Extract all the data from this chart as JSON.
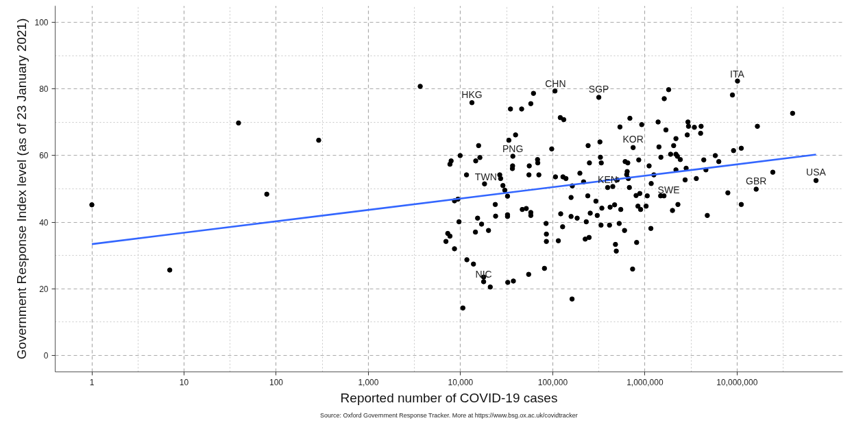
{
  "chart_data": {
    "type": "scatter",
    "xlabel": "Reported number of COVID-19 cases",
    "ylabel": "Government Response Index level (as of 23 January 2021)",
    "log": "x",
    "xlim": [
      0.4,
      140000000
    ],
    "ylim": [
      -5,
      105
    ],
    "xticks": [
      1,
      10,
      100,
      {
        "value": 1000,
        "label": "1,000"
      },
      {
        "value": 10000,
        "label": "10,000"
      },
      {
        "value": 100000,
        "label": "100,000"
      },
      {
        "value": 1000000,
        "label": "1,000,000"
      },
      {
        "value": 10000000,
        "label": "10,000,000"
      }
    ],
    "yticks": [
      0,
      20,
      40,
      60,
      80,
      100
    ],
    "grid": true,
    "series": [
      {
        "color": "#000000",
        "marker": "circle",
        "x": [
          71800000,
          3650,
          39,
          289,
          79,
          1,
          7,
          13280,
          61800,
          105700,
          316000,
          34800,
          46000,
          57800,
          120800,
          131600,
          1810000,
          1620000,
          10100000,
          8900000,
          40000000,
          16600000,
          687000,
          536000,
          923000,
          1390000,
          1690000,
          2930000,
          2970000,
          3440000,
          4070000,
          4020000,
          2880000,
          2170000,
          2050000,
          1420000,
          745000,
          325000,
          242000,
          97500,
          15700,
          33400,
          39500,
          9900,
          7900,
          7670,
          14600,
          16200,
          36900,
          36700,
          36500,
          68400,
          68800,
          55600,
          250000,
          329000,
          336000,
          610000,
          652000,
          857000,
          1490000,
          1900000,
          2170000,
          2250000,
          2420000,
          4350000,
          5800000,
          6330000,
          9150000,
          11100000,
          1110000,
          4590000,
          2800000,
          2170000,
          24400000,
          11600,
          26600,
          27200,
          28800,
          55200,
          70700,
          107000,
          129000,
          139000,
          197000,
          216000,
          163000,
          501000,
          642000,
          634000,
          661000,
          1250000,
          1170000,
          2730000,
          3610000,
          678000,
          394000,
          448000,
          18200,
          30200,
          16100000,
          8590,
          9370,
          32300,
          23800,
          158000,
          240000,
          294000,
          802000,
          880000,
          1060000,
          1480000,
          1610000,
          2280000,
          1990000,
          7940000,
          11100000,
          4750000,
          15300,
          16900,
          20100,
          14500,
          9620,
          7260,
          7670,
          6940,
          8590,
          11700,
          13800,
          17800,
          17800,
          21000,
          10600,
          32500,
          37400,
          54800,
          81300,
          162000,
          735000,
          24000,
          32300,
          32300,
          46700,
          51600,
          57800,
          57800,
          84700,
          85300,
          85300,
          115000,
          122000,
          128000,
          158000,
          184000,
          231000,
          225000,
          248000,
          255000,
          304000,
          341000,
          334000,
          413000,
          419000,
          469000,
          547000,
          526000,
          601000,
          479000,
          489000,
          813000,
          840000,
          898000,
          1030000,
          1160000
        ],
        "values": [
          52.5,
          80.8,
          69.8,
          64.6,
          48.4,
          45.2,
          25.6,
          75.9,
          78.7,
          79.4,
          77.5,
          74.0,
          74.0,
          75.6,
          71.4,
          70.8,
          79.8,
          77.1,
          82.4,
          78.2,
          72.7,
          68.8,
          71.2,
          68.6,
          69.3,
          70.1,
          67.7,
          70.1,
          68.8,
          68.5,
          68.8,
          66.7,
          66.2,
          65.1,
          63.0,
          62.6,
          62.4,
          64.1,
          63.0,
          62.0,
          63.0,
          64.6,
          66.2,
          60.0,
          58.4,
          57.4,
          58.4,
          59.4,
          59.8,
          56.9,
          56.1,
          58.8,
          57.8,
          56.9,
          57.8,
          59.5,
          57.8,
          58.2,
          57.8,
          58.7,
          59.5,
          60.4,
          60.4,
          59.8,
          58.8,
          58.7,
          60.0,
          58.2,
          61.5,
          62.2,
          56.9,
          55.7,
          56.2,
          55.7,
          55.0,
          54.2,
          54.2,
          53.1,
          51.0,
          54.2,
          54.2,
          53.6,
          53.6,
          53.1,
          54.7,
          52.1,
          50.9,
          52.7,
          55.2,
          54.3,
          53.1,
          54.2,
          51.6,
          52.7,
          53.1,
          50.4,
          50.4,
          50.7,
          51.5,
          49.6,
          49.9,
          46.4,
          46.9,
          47.8,
          45.3,
          47.4,
          47.9,
          46.3,
          48.0,
          48.6,
          47.9,
          47.9,
          47.9,
          45.3,
          43.5,
          48.8,
          45.3,
          42.0,
          41.2,
          39.4,
          37.5,
          37.0,
          40.1,
          36.6,
          35.8,
          34.2,
          32.0,
          28.7,
          27.4,
          23.5,
          22.1,
          20.5,
          14.2,
          21.9,
          22.3,
          24.3,
          26.1,
          16.9,
          25.9,
          41.8,
          42.2,
          41.7,
          43.8,
          44.1,
          42.9,
          42.0,
          39.6,
          36.4,
          34.2,
          34.4,
          42.5,
          38.6,
          41.7,
          41.2,
          40.1,
          34.9,
          35.4,
          42.7,
          42.0,
          44.2,
          39.1,
          39.1,
          44.5,
          45.2,
          43.8,
          39.6,
          37.5,
          33.3,
          31.3,
          33.9,
          44.8,
          43.8,
          44.8,
          38.1
        ]
      },
      {
        "type": "line",
        "color": "#3366ff",
        "x": [
          1,
          71800000
        ],
        "values": [
          33.4,
          60.3
        ]
      }
    ],
    "annotations": [
      {
        "text": "HKG",
        "x": 13280,
        "y": 75.9
      },
      {
        "text": "CHN",
        "x": 107000,
        "y": 79.1
      },
      {
        "text": "SGP",
        "x": 316000,
        "y": 77.5
      },
      {
        "text": "ITA",
        "x": 10000000,
        "y": 82.0
      },
      {
        "text": "KOR",
        "x": 745000,
        "y": 62.4
      },
      {
        "text": "PNG",
        "x": 36900,
        "y": 59.6
      },
      {
        "text": "TWN",
        "x": 18800,
        "y": 51.2
      },
      {
        "text": "USA",
        "x": 71800000,
        "y": 52.5
      },
      {
        "text": "GBR",
        "x": 16100000,
        "y": 49.9
      },
      {
        "text": "KEN",
        "x": 394000,
        "y": 50.4
      },
      {
        "text": "SWE",
        "x": 1810000,
        "y": 47.2
      },
      {
        "text": "NIC",
        "x": 17800,
        "y": 21.8
      },
      "Source: Oxford Government Response Tracker. More at https://www.bsg.ox.ac.uk/covidtracker"
    ]
  }
}
